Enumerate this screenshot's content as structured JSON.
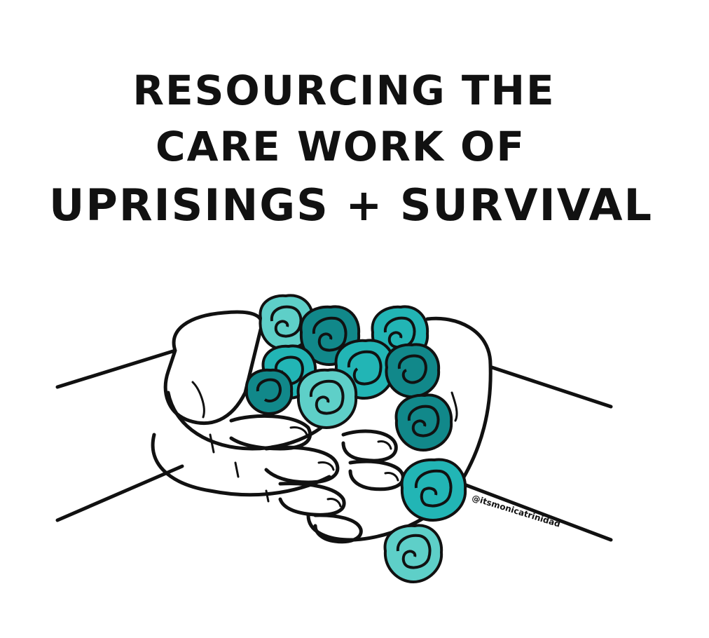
{
  "title": {
    "line1": "RESOURCING THE",
    "line2": "CARE WORK OF",
    "line3": "UPRISINGS + SURVIVAL"
  },
  "credit": {
    "handle": "@itsmonicatrinidad"
  },
  "colors": {
    "ink": "#111111",
    "background": "#ffffff",
    "flower_light": "#5ecfc8",
    "flower_mid": "#22b5b5",
    "flower_dark": "#11888a"
  },
  "illustration": {
    "subject": "two hands cupping teal roses",
    "icons": [
      "hands-illustration",
      "rose-icon"
    ]
  }
}
